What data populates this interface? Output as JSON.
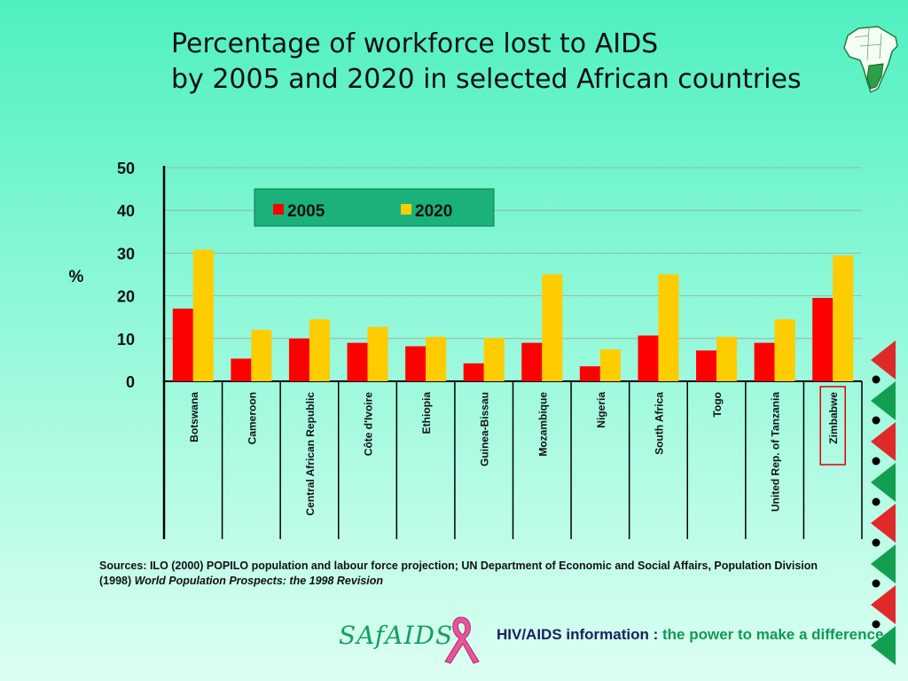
{
  "title": {
    "line1": "Percentage of workforce lost to AIDS",
    "line2": "by 2005 and 2020 in selected African countries"
  },
  "colors": {
    "series_2005": "#ff0000",
    "series_2020": "#ffcc00",
    "legend_bg": "#1ab27a",
    "highlight_box": "#e00000",
    "deco_red": "#e02a2a",
    "deco_green": "#12a050"
  },
  "chart_data": {
    "type": "bar",
    "ylabel": "%",
    "ylim": [
      0,
      50
    ],
    "yticks": [
      0,
      10,
      20,
      30,
      40,
      50
    ],
    "grid": true,
    "legend_position": "top-center",
    "categories": [
      "Botswana",
      "Cameroon",
      "Central African Republic",
      "Côte d'Ivoire",
      "Ethiopia",
      "Guinea-Bissau",
      "Mozambique",
      "Nigeria",
      "South Africa",
      "Togo",
      "United Rep. of Tanzania",
      "Zimbabwe"
    ],
    "highlighted_category": "Zimbabwe",
    "series": [
      {
        "name": "2005",
        "values": [
          17,
          5.3,
          10,
          9,
          8.2,
          4.2,
          9,
          3.5,
          10.7,
          7.2,
          9,
          19.5
        ]
      },
      {
        "name": "2020",
        "values": [
          30.8,
          12,
          14.5,
          12.7,
          10.4,
          10.1,
          25,
          7.5,
          25,
          10.4,
          14.5,
          29.4
        ]
      }
    ]
  },
  "sources": {
    "text": "Sources:  ILO (2000) POPILO population and labour force projection;  UN Department of Economic and Social Affairs, Population Division (1998)",
    "italic": "World Population Prospects: the 1998 Revision"
  },
  "footer": {
    "logo": "SAfAIDS",
    "tagline_part1": "HIV/AIDS information : ",
    "tagline_part2": "the power to make a difference"
  }
}
